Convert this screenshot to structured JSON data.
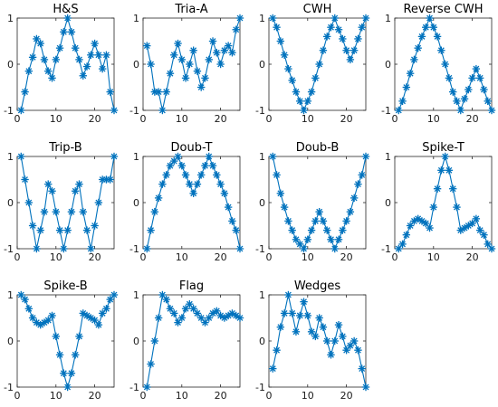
{
  "chart_data": [
    {
      "type": "line",
      "title": "H&S",
      "xlim": [
        0,
        25
      ],
      "ylim": [
        -1,
        1
      ],
      "xticks": [
        0,
        10,
        20
      ],
      "yticks": [
        -1,
        0,
        1
      ],
      "x": [
        1,
        2,
        3,
        4,
        5,
        6,
        7,
        8,
        9,
        10,
        11,
        12,
        13,
        14,
        15,
        16,
        17,
        18,
        19,
        20,
        21,
        22,
        23,
        24,
        25
      ],
      "y": [
        -1,
        -0.6,
        -0.15,
        0.15,
        0.55,
        0.45,
        0.1,
        -0.15,
        -0.3,
        0.1,
        0.35,
        0.7,
        1,
        0.7,
        0.35,
        0.1,
        -0.25,
        -0.05,
        0.2,
        0.45,
        0.2,
        -0.1,
        0.2,
        -0.6,
        -1
      ]
    },
    {
      "type": "line",
      "title": "Tria-A",
      "xlim": [
        0,
        25
      ],
      "ylim": [
        -1,
        1
      ],
      "xticks": [
        0,
        10,
        20
      ],
      "yticks": [
        -1,
        0,
        1
      ],
      "x": [
        1,
        2,
        3,
        4,
        5,
        6,
        7,
        8,
        9,
        10,
        11,
        12,
        13,
        14,
        15,
        16,
        17,
        18,
        19,
        20,
        21,
        22,
        23,
        24,
        25
      ],
      "y": [
        0.4,
        0,
        -0.6,
        -0.6,
        -1,
        -0.6,
        -0.2,
        0.2,
        0.45,
        0.1,
        -0.3,
        0,
        0.3,
        -0.15,
        -0.5,
        -0.3,
        0.1,
        0.5,
        0.25,
        0,
        0.3,
        0.4,
        0.25,
        0.75,
        1
      ]
    },
    {
      "type": "line",
      "title": "CWH",
      "xlim": [
        0,
        25
      ],
      "ylim": [
        -1,
        1
      ],
      "xticks": [
        0,
        10,
        20
      ],
      "yticks": [
        -1,
        0,
        1
      ],
      "x": [
        1,
        2,
        3,
        4,
        5,
        6,
        7,
        8,
        9,
        10,
        11,
        12,
        13,
        14,
        15,
        16,
        17,
        18,
        19,
        20,
        21,
        22,
        23,
        24,
        25
      ],
      "y": [
        1,
        0.8,
        0.5,
        0.2,
        -0.1,
        -0.35,
        -0.6,
        -0.8,
        -1,
        -0.8,
        -0.6,
        -0.3,
        0,
        0.3,
        0.6,
        0.8,
        1,
        0.75,
        0.55,
        0.3,
        0.1,
        0.3,
        0.55,
        0.8,
        1
      ]
    },
    {
      "type": "line",
      "title": "Reverse CWH",
      "xlim": [
        0,
        25
      ],
      "ylim": [
        -1,
        1
      ],
      "xticks": [
        0,
        10,
        20
      ],
      "yticks": [
        -1,
        0,
        1
      ],
      "x": [
        1,
        2,
        3,
        4,
        5,
        6,
        7,
        8,
        9,
        10,
        11,
        12,
        13,
        14,
        15,
        16,
        17,
        18,
        19,
        20,
        21,
        22,
        23,
        24,
        25
      ],
      "y": [
        -1,
        -0.8,
        -0.5,
        -0.2,
        0.1,
        0.35,
        0.6,
        0.8,
        1,
        0.8,
        0.6,
        0.3,
        0,
        -0.3,
        -0.6,
        -0.8,
        -1,
        -0.75,
        -0.55,
        -0.3,
        -0.1,
        -0.3,
        -0.55,
        -0.8,
        -1
      ]
    },
    {
      "type": "line",
      "title": "Trip-B",
      "xlim": [
        0,
        25
      ],
      "ylim": [
        -1,
        1
      ],
      "xticks": [
        0,
        10,
        20
      ],
      "yticks": [
        -1,
        0,
        1
      ],
      "x": [
        1,
        2,
        3,
        4,
        5,
        6,
        7,
        8,
        9,
        10,
        11,
        12,
        13,
        14,
        15,
        16,
        17,
        18,
        19,
        20,
        21,
        22,
        23,
        24,
        25
      ],
      "y": [
        1,
        0.5,
        0,
        -0.5,
        -1,
        -0.6,
        -0.2,
        0.4,
        0.25,
        -0.2,
        -0.6,
        -1,
        -0.6,
        -0.2,
        0.25,
        0.4,
        -0.2,
        -0.6,
        -1,
        -0.5,
        0,
        0.5,
        0.5,
        0.5,
        1
      ]
    },
    {
      "type": "line",
      "title": "Doub-T",
      "xlim": [
        0,
        25
      ],
      "ylim": [
        -1,
        1
      ],
      "xticks": [
        0,
        10,
        20
      ],
      "yticks": [
        -1,
        0,
        1
      ],
      "x": [
        1,
        2,
        3,
        4,
        5,
        6,
        7,
        8,
        9,
        10,
        11,
        12,
        13,
        14,
        15,
        16,
        17,
        18,
        19,
        20,
        21,
        22,
        23,
        24,
        25
      ],
      "y": [
        -1,
        -0.6,
        -0.2,
        0.1,
        0.4,
        0.6,
        0.8,
        0.9,
        1,
        0.8,
        0.6,
        0.4,
        0.2,
        0.4,
        0.6,
        0.8,
        1,
        0.8,
        0.6,
        0.4,
        0.2,
        -0.1,
        -0.4,
        -0.6,
        -1
      ]
    },
    {
      "type": "line",
      "title": "Doub-B",
      "xlim": [
        0,
        25
      ],
      "ylim": [
        -1,
        1
      ],
      "xticks": [
        0,
        10,
        20
      ],
      "yticks": [
        -1,
        0,
        1
      ],
      "x": [
        1,
        2,
        3,
        4,
        5,
        6,
        7,
        8,
        9,
        10,
        11,
        12,
        13,
        14,
        15,
        16,
        17,
        18,
        19,
        20,
        21,
        22,
        23,
        24,
        25
      ],
      "y": [
        1,
        0.6,
        0.2,
        -0.1,
        -0.4,
        -0.6,
        -0.8,
        -0.9,
        -1,
        -0.8,
        -0.6,
        -0.4,
        -0.2,
        -0.4,
        -0.6,
        -0.8,
        -1,
        -0.8,
        -0.6,
        -0.4,
        -0.2,
        0.1,
        0.4,
        0.6,
        1
      ]
    },
    {
      "type": "line",
      "title": "Spike-T",
      "xlim": [
        0,
        25
      ],
      "ylim": [
        -1,
        1
      ],
      "xticks": [
        0,
        10,
        20
      ],
      "yticks": [
        -1,
        0,
        1
      ],
      "x": [
        1,
        2,
        3,
        4,
        5,
        6,
        7,
        8,
        9,
        10,
        11,
        12,
        13,
        14,
        15,
        16,
        17,
        18,
        19,
        20,
        21,
        22,
        23,
        24,
        25
      ],
      "y": [
        -1,
        -0.9,
        -0.7,
        -0.5,
        -0.4,
        -0.35,
        -0.4,
        -0.45,
        -0.55,
        -0.1,
        0.3,
        0.7,
        1,
        0.7,
        0.3,
        -0.1,
        -0.6,
        -0.55,
        -0.5,
        -0.45,
        -0.35,
        -0.6,
        -0.7,
        -0.9,
        -1
      ]
    },
    {
      "type": "line",
      "title": "Spike-B",
      "xlim": [
        0,
        25
      ],
      "ylim": [
        -1,
        1
      ],
      "xticks": [
        0,
        10,
        20
      ],
      "yticks": [
        -1,
        0,
        1
      ],
      "x": [
        1,
        2,
        3,
        4,
        5,
        6,
        7,
        8,
        9,
        10,
        11,
        12,
        13,
        14,
        15,
        16,
        17,
        18,
        19,
        20,
        21,
        22,
        23,
        24,
        25
      ],
      "y": [
        1,
        0.9,
        0.7,
        0.5,
        0.4,
        0.35,
        0.4,
        0.45,
        0.55,
        0.1,
        -0.3,
        -0.7,
        -1,
        -0.7,
        -0.3,
        0.1,
        0.6,
        0.55,
        0.5,
        0.45,
        0.35,
        0.6,
        0.7,
        0.9,
        1
      ]
    },
    {
      "type": "line",
      "title": "Flag",
      "xlim": [
        0,
        25
      ],
      "ylim": [
        -1,
        1
      ],
      "xticks": [
        0,
        10,
        20
      ],
      "yticks": [
        -1,
        0,
        1
      ],
      "x": [
        1,
        2,
        3,
        4,
        5,
        6,
        7,
        8,
        9,
        10,
        11,
        12,
        13,
        14,
        15,
        16,
        17,
        18,
        19,
        20,
        21,
        22,
        23,
        24,
        25
      ],
      "y": [
        -1,
        -0.5,
        0,
        0.5,
        1,
        0.9,
        0.7,
        0.6,
        0.4,
        0.5,
        0.7,
        0.8,
        0.7,
        0.6,
        0.5,
        0.4,
        0.5,
        0.6,
        0.65,
        0.55,
        0.5,
        0.55,
        0.6,
        0.55,
        0.5
      ]
    },
    {
      "type": "line",
      "title": "Wedges",
      "xlim": [
        0,
        25
      ],
      "ylim": [
        -1,
        1
      ],
      "xticks": [
        0,
        10,
        20
      ],
      "yticks": [
        -1,
        0,
        1
      ],
      "x": [
        1,
        2,
        3,
        4,
        5,
        6,
        7,
        8,
        9,
        10,
        11,
        12,
        13,
        14,
        15,
        16,
        17,
        18,
        19,
        20,
        21,
        22,
        23,
        24,
        25
      ],
      "y": [
        -0.6,
        -0.2,
        0.3,
        0.6,
        1,
        0.6,
        0.2,
        0.55,
        0.85,
        0.55,
        0.2,
        0.1,
        0.5,
        0.3,
        0,
        -0.3,
        0,
        0.35,
        0.1,
        -0.2,
        -0.1,
        0,
        -0.2,
        -0.6,
        -1
      ]
    }
  ]
}
